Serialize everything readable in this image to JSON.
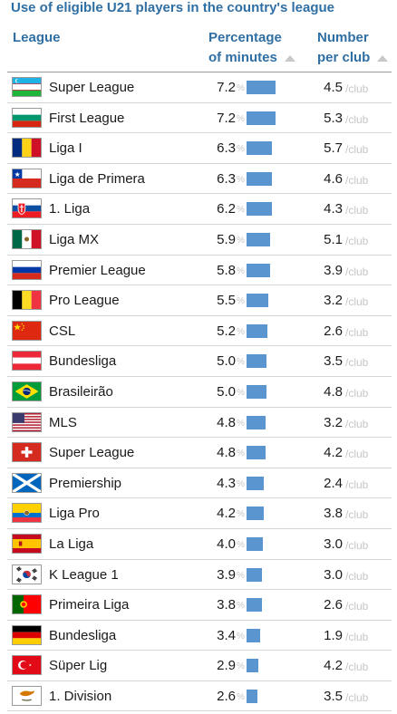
{
  "title": "Use of eligible U21 players in the country's league",
  "headers": {
    "league": "League",
    "pct_line1": "Percentage",
    "pct_line2": "of minutes",
    "num_line1": "Number",
    "num_line2": "per club"
  },
  "units": {
    "pct": "%",
    "club": "/club"
  },
  "colors": {
    "accent": "#2f6fa3",
    "bar": "#5b95cf"
  },
  "chart_data": {
    "type": "table",
    "columns": [
      "League",
      "Percentage of minutes",
      "Number per club"
    ],
    "bar_max": 7.2,
    "rows": [
      {
        "league": "Super League",
        "flag": "uzbekistan-flag",
        "pct": 7.2,
        "per_club": 4.5
      },
      {
        "league": "First League",
        "flag": "bulgaria-flag",
        "pct": 7.2,
        "per_club": 5.3
      },
      {
        "league": "Liga I",
        "flag": "romania-flag",
        "pct": 6.3,
        "per_club": 5.7
      },
      {
        "league": "Liga de Primera",
        "flag": "chile-flag",
        "pct": 6.3,
        "per_club": 4.6
      },
      {
        "league": "1. Liga",
        "flag": "slovakia-flag",
        "pct": 6.2,
        "per_club": 4.3
      },
      {
        "league": "Liga MX",
        "flag": "mexico-flag",
        "pct": 5.9,
        "per_club": 5.1
      },
      {
        "league": "Premier League",
        "flag": "russia-flag",
        "pct": 5.8,
        "per_club": 3.9
      },
      {
        "league": "Pro League",
        "flag": "belgium-flag",
        "pct": 5.5,
        "per_club": 3.2
      },
      {
        "league": "CSL",
        "flag": "china-flag",
        "pct": 5.2,
        "per_club": 2.6
      },
      {
        "league": "Bundesliga",
        "flag": "austria-flag",
        "pct": 5.0,
        "per_club": 3.5
      },
      {
        "league": "Brasileirão",
        "flag": "brazil-flag",
        "pct": 5.0,
        "per_club": 4.8
      },
      {
        "league": "MLS",
        "flag": "usa-flag",
        "pct": 4.8,
        "per_club": 3.2
      },
      {
        "league": "Super League",
        "flag": "switzerland-flag",
        "pct": 4.8,
        "per_club": 4.2
      },
      {
        "league": "Premiership",
        "flag": "scotland-flag",
        "pct": 4.3,
        "per_club": 2.4
      },
      {
        "league": "Liga Pro",
        "flag": "ecuador-flag",
        "pct": 4.2,
        "per_club": 3.8
      },
      {
        "league": "La Liga",
        "flag": "spain-flag",
        "pct": 4.0,
        "per_club": 3.0
      },
      {
        "league": "K League 1",
        "flag": "south-korea-flag",
        "pct": 3.9,
        "per_club": 3.0
      },
      {
        "league": "Primeira Liga",
        "flag": "portugal-flag",
        "pct": 3.8,
        "per_club": 2.6
      },
      {
        "league": "Bundesliga",
        "flag": "germany-flag",
        "pct": 3.4,
        "per_club": 1.9
      },
      {
        "league": "Süper Lig",
        "flag": "turkey-flag",
        "pct": 2.9,
        "per_club": 4.2
      },
      {
        "league": "1. Division",
        "flag": "cyprus-flag",
        "pct": 2.6,
        "per_club": 3.5
      }
    ]
  }
}
